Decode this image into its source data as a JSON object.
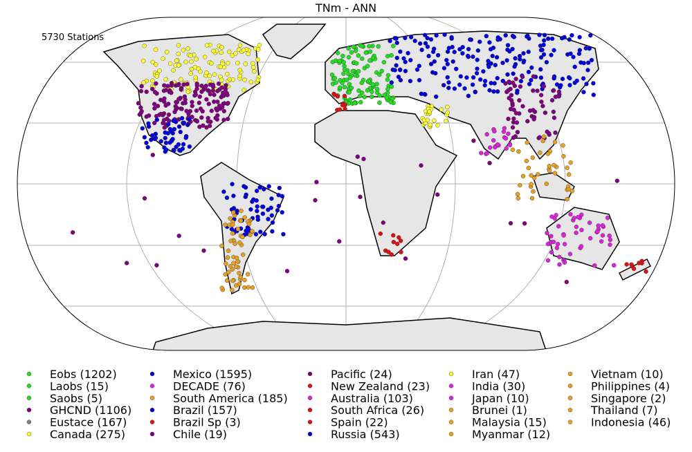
{
  "title": "TNm - ANN",
  "subtitle": "5730 Stations",
  "legend": {
    "columns": [
      [
        {
          "label": "Eobs (1202)",
          "color": "#22dd22"
        },
        {
          "label": "Laobs (15)",
          "color": "#22dd22"
        },
        {
          "label": "Saobs (5)",
          "color": "#22dd22"
        },
        {
          "label": "GHCND (1106)",
          "color": "#800080"
        },
        {
          "label": "Eustace (167)",
          "color": "#808080"
        },
        {
          "label": "Canada (275)",
          "color": "#ffff33"
        }
      ],
      [
        {
          "label": "Mexico (1595)",
          "color": "#0000dd"
        },
        {
          "label": "DECADE (76)",
          "color": "#dd22dd"
        },
        {
          "label": "South America (185)",
          "color": "#e8a020"
        },
        {
          "label": "Brazil (157)",
          "color": "#0000dd"
        },
        {
          "label": "Brazil Sp (3)",
          "color": "#dd1111"
        },
        {
          "label": "Chile (19)",
          "color": "#800080"
        }
      ],
      [
        {
          "label": "Pacific (24)",
          "color": "#800080"
        },
        {
          "label": "New Zealand (23)",
          "color": "#dd1111"
        },
        {
          "label": "Australia (103)",
          "color": "#dd22dd"
        },
        {
          "label": "South Africa (26)",
          "color": "#dd1111"
        },
        {
          "label": "Spain (22)",
          "color": "#dd1111"
        },
        {
          "label": "Russia (543)",
          "color": "#0000dd"
        }
      ],
      [
        {
          "label": "Iran (47)",
          "color": "#ffff33"
        },
        {
          "label": "India (30)",
          "color": "#dd22dd"
        },
        {
          "label": "Japan (10)",
          "color": "#dd22dd"
        },
        {
          "label": "Brunei (1)",
          "color": "#e8a020"
        },
        {
          "label": "Malaysia (15)",
          "color": "#e8a020"
        },
        {
          "label": "Myanmar (12)",
          "color": "#e8a020"
        }
      ],
      [
        {
          "label": "Vietnam (10)",
          "color": "#e8a020"
        },
        {
          "label": "Philippines (4)",
          "color": "#e8a020"
        },
        {
          "label": "Singapore (2)",
          "color": "#e8a020"
        },
        {
          "label": "Thailand (7)",
          "color": "#e8a020"
        },
        {
          "label": "Indonesia (46)",
          "color": "#e8a020"
        }
      ]
    ]
  }
}
